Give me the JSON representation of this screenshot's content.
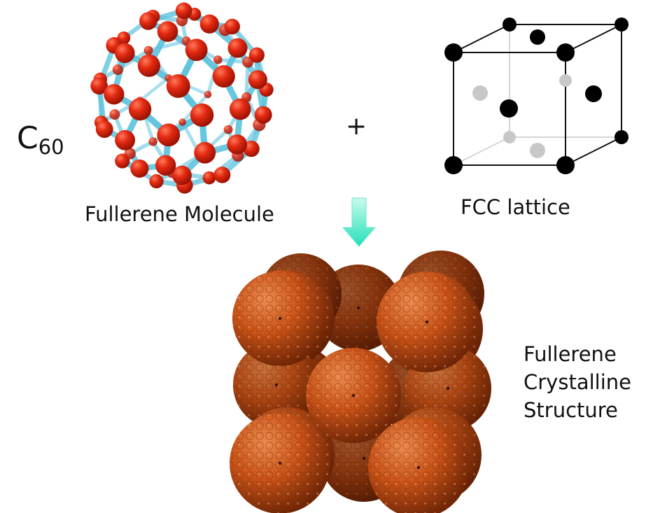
{
  "labels": {
    "c60_letter": "C",
    "c60_subscript": "60",
    "plus_sign": "+",
    "molecule": "Fullerene Molecule",
    "fcc": "FCC lattice",
    "crystal": [
      "Fullerene",
      "Crystalline",
      "Structure"
    ]
  },
  "colors": {
    "carbon_atom": "#e42a12",
    "bond": "#5fc4de",
    "arrow": "#3ee8c2",
    "lattice_atom_front": "#000000",
    "lattice_atom_hidden": "#c8c8c8",
    "crystal_sphere": "#c95318"
  },
  "icons": {
    "arrow": "down-arrow-icon"
  }
}
